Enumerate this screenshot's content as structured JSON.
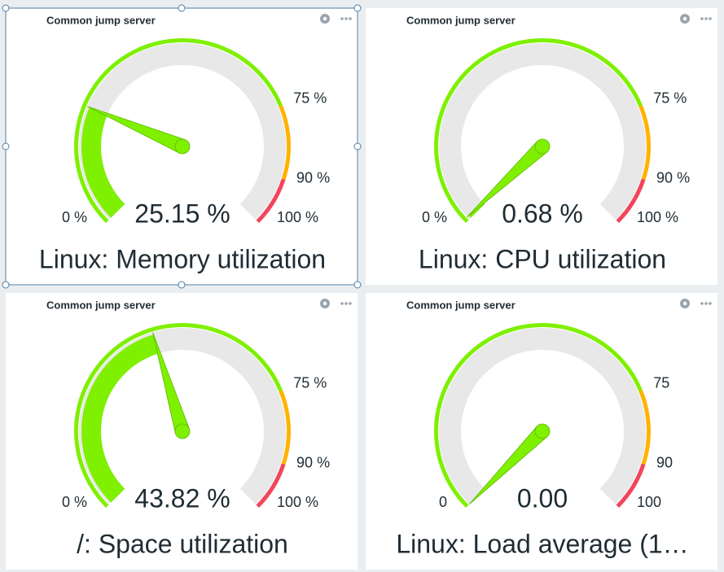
{
  "widgets": [
    {
      "header": "Common jump server",
      "title": "Linux: Memory utilization",
      "value": 25.15,
      "value_label": "25.15 %",
      "min": {
        "value": 0,
        "label": "0 %"
      },
      "max": {
        "value": 100,
        "label": "100 %"
      },
      "thresholds": [
        {
          "value": 75,
          "label": "75 %"
        },
        {
          "value": 90,
          "label": "90 %"
        }
      ]
    },
    {
      "header": "Common jump server",
      "title": "Linux: CPU utilization",
      "value": 0.68,
      "value_label": "0.68 %",
      "min": {
        "value": 0,
        "label": "0 %"
      },
      "max": {
        "value": 100,
        "label": "100 %"
      },
      "thresholds": [
        {
          "value": 75,
          "label": "75 %"
        },
        {
          "value": 90,
          "label": "90 %"
        }
      ]
    },
    {
      "header": "Common jump server",
      "title": "/: Space utilization",
      "value": 43.82,
      "value_label": "43.82 %",
      "min": {
        "value": 0,
        "label": "0 %"
      },
      "max": {
        "value": 100,
        "label": "100 %"
      },
      "thresholds": [
        {
          "value": 75,
          "label": "75 %"
        },
        {
          "value": 90,
          "label": "90 %"
        }
      ]
    },
    {
      "header": "Common jump server",
      "title": "Linux: Load average (1…",
      "value": 0,
      "value_label": "0.00",
      "min": 0,
      "max": 100,
      "thresholds": [
        75,
        90
      ]
    }
  ]
}
